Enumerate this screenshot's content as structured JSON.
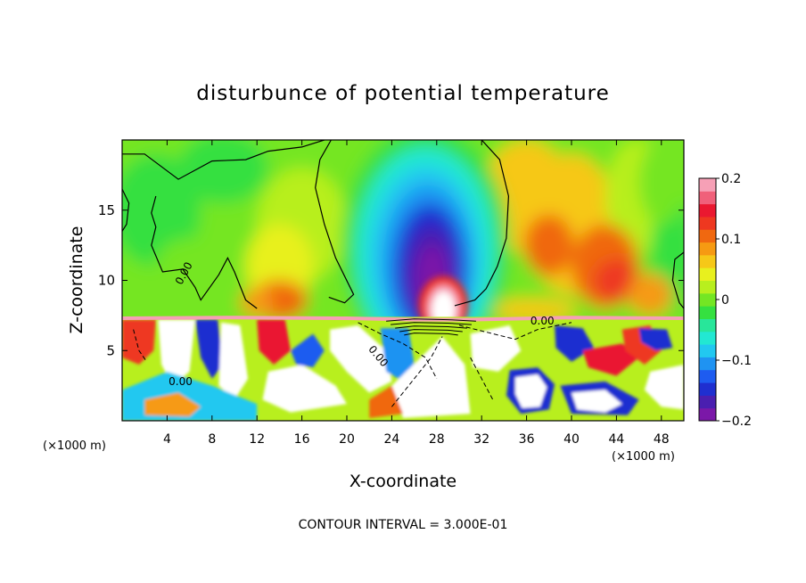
{
  "chart_data": {
    "type": "heatmap",
    "title": "disturbunce of potential temperature",
    "xlabel": "X-coordinate",
    "ylabel": "Z-coordinate",
    "x_unit_left": "(×1000 m)",
    "x_unit_right": "(×1000 m)",
    "xlim": [
      0,
      50
    ],
    "ylim": [
      0,
      20
    ],
    "xticks": [
      4,
      8,
      12,
      16,
      20,
      24,
      28,
      32,
      36,
      40,
      44,
      48
    ],
    "yticks": [
      5,
      10,
      15
    ],
    "colorbar": {
      "range": [
        -0.2,
        0.2
      ],
      "tick_values": [
        0.2,
        0.1,
        0,
        -0.1,
        -0.2
      ],
      "tick_labels": [
        "0.2",
        "0.1",
        "0",
        "−0.1",
        "−0.2"
      ],
      "colors": [
        "#7b18a8",
        "#4a1fb0",
        "#1f2fd0",
        "#1e5cf0",
        "#1f93f2",
        "#22c8f0",
        "#22e8d2",
        "#28e69a",
        "#35e040",
        "#74e624",
        "#b8ef1e",
        "#e8f01e",
        "#f6c818",
        "#f69a12",
        "#f06810",
        "#ee3820",
        "#ea1830",
        "#f0607a",
        "#f6a0b6"
      ]
    },
    "contour_labels": [
      "0.00",
      "0.00",
      "0.00",
      "0.00"
    ],
    "contour_interval_text": "CONTOUR INTERVAL = 3.000E-01",
    "features": [
      {
        "name": "cold anomaly core",
        "x_center": 27,
        "z_center": 11,
        "value": -0.2
      },
      {
        "name": "warm anomaly",
        "x_center": 43,
        "z_center": 10.5,
        "value": 0.1
      },
      {
        "name": "warm anomaly",
        "x_center": 38,
        "z_center": 12.5,
        "value": 0.07
      },
      {
        "name": "warm anomaly",
        "x_center": 14,
        "z_center": 8.5,
        "value": 0.12
      },
      {
        "name": "warm dome above cloud top",
        "x_center": 28,
        "z_center": 9,
        "value": 0.2
      }
    ]
  }
}
